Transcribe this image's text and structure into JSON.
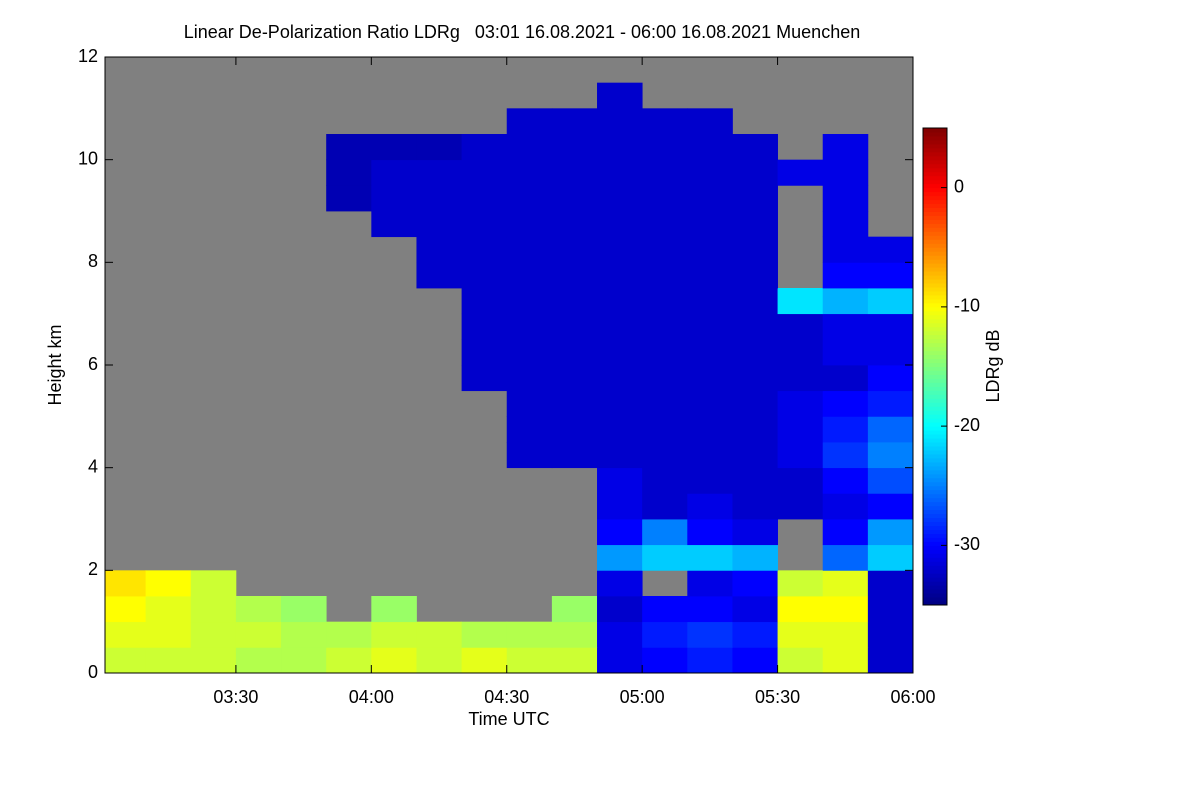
{
  "chart_data": {
    "type": "heatmap",
    "title": "Linear De-Polarization Ratio LDRg   03:01 16.08.2021 - 06:00 16.08.2021 Muenchen",
    "x_label": "Time UTC",
    "y_label": "Height km",
    "colorbar_label": "LDRg dB",
    "colormap": "jet",
    "background_color": "#808080",
    "xlim": [
      "03:01",
      "06:00"
    ],
    "xticks": [
      "03:30",
      "04:00",
      "04:30",
      "05:00",
      "05:30",
      "06:00"
    ],
    "ylim": [
      0,
      12
    ],
    "yticks": [
      0,
      2,
      4,
      6,
      8,
      10,
      12
    ],
    "clim": [
      -35,
      5
    ],
    "cticks": [
      0,
      -10,
      -20,
      -30
    ],
    "x_bins": [
      "03:01",
      "03:10",
      "03:20",
      "03:30",
      "03:40",
      "03:50",
      "04:00",
      "04:10",
      "04:20",
      "04:30",
      "04:40",
      "04:50",
      "05:00",
      "05:10",
      "05:20",
      "05:30",
      "05:40",
      "05:50",
      "06:00"
    ],
    "y_bins": [
      0,
      0.5,
      1,
      1.5,
      2,
      2.5,
      3,
      3.5,
      4,
      4.5,
      5,
      5.5,
      6,
      6.5,
      7,
      7.5,
      8,
      8.5,
      9,
      9.5,
      10,
      10.5,
      11,
      11.5,
      12
    ],
    "values": [
      [
        -12,
        -12,
        -12,
        -13,
        -13,
        -12,
        -11,
        -12,
        -11,
        -12,
        -12,
        -31,
        -30,
        -29,
        -30,
        -12,
        -11,
        -32
      ],
      [
        -11,
        -11,
        -12,
        -12,
        -13,
        -13,
        -12,
        -12,
        -13,
        -13,
        -13,
        -31,
        -29,
        -28,
        -29,
        -11,
        -11,
        -32
      ],
      [
        -10,
        -11,
        -12,
        -13,
        -14,
        null,
        -14,
        null,
        null,
        null,
        -14,
        -32,
        -30,
        -30,
        -31,
        -10,
        -10,
        -32
      ],
      [
        -9,
        -10,
        -12,
        null,
        null,
        null,
        null,
        null,
        null,
        null,
        null,
        -31,
        null,
        -31,
        -30,
        -12,
        -11,
        -32
      ],
      [
        null,
        null,
        null,
        null,
        null,
        null,
        null,
        null,
        null,
        null,
        null,
        -24,
        -22,
        -22,
        -23,
        null,
        -26,
        -22
      ],
      [
        null,
        null,
        null,
        null,
        null,
        null,
        null,
        null,
        null,
        null,
        null,
        -30,
        -25,
        -30,
        -31,
        null,
        -30,
        -24
      ],
      [
        null,
        null,
        null,
        null,
        null,
        null,
        null,
        null,
        null,
        null,
        null,
        -31,
        -32,
        -31,
        -32,
        -32,
        -31,
        -30
      ],
      [
        null,
        null,
        null,
        null,
        null,
        null,
        null,
        null,
        null,
        null,
        null,
        -31,
        -32,
        -32,
        -32,
        -32,
        -30,
        -27
      ],
      [
        null,
        null,
        null,
        null,
        null,
        null,
        null,
        null,
        null,
        -32,
        -32,
        -32,
        -32,
        -32,
        -32,
        -31,
        -28,
        -25
      ],
      [
        null,
        null,
        null,
        null,
        null,
        null,
        null,
        null,
        null,
        -32,
        -32,
        -32,
        -32,
        -32,
        -32,
        -31,
        -29,
        -26
      ],
      [
        null,
        null,
        null,
        null,
        null,
        null,
        null,
        null,
        null,
        -32,
        -32,
        -32,
        -32,
        -32,
        -32,
        -31,
        -30,
        -29
      ],
      [
        null,
        null,
        null,
        null,
        null,
        null,
        null,
        null,
        -32,
        -32,
        -32,
        -32,
        -32,
        -32,
        -32,
        -32,
        -32,
        -30
      ],
      [
        null,
        null,
        null,
        null,
        null,
        null,
        null,
        null,
        -32,
        -32,
        -32,
        -32,
        -32,
        -32,
        -32,
        -32,
        -31,
        -31
      ],
      [
        null,
        null,
        null,
        null,
        null,
        null,
        null,
        null,
        -32,
        -32,
        -32,
        -32,
        -32,
        -32,
        -32,
        -32,
        -31,
        -31
      ],
      [
        null,
        null,
        null,
        null,
        null,
        null,
        null,
        null,
        -32,
        -32,
        -32,
        -32,
        -32,
        -32,
        -32,
        -21,
        -23,
        -22
      ],
      [
        null,
        null,
        null,
        null,
        null,
        null,
        null,
        -32,
        -32,
        -32,
        -32,
        -32,
        -32,
        -32,
        -32,
        null,
        -30,
        -30
      ],
      [
        null,
        null,
        null,
        null,
        null,
        null,
        null,
        -32,
        -32,
        -32,
        -32,
        -32,
        -32,
        -32,
        -32,
        null,
        -31,
        -31
      ],
      [
        null,
        null,
        null,
        null,
        null,
        null,
        -32,
        -32,
        -32,
        -32,
        -32,
        -32,
        -32,
        -32,
        -32,
        null,
        -31,
        null
      ],
      [
        null,
        null,
        null,
        null,
        null,
        -33,
        -32,
        -32,
        -32,
        -32,
        -32,
        -32,
        -32,
        -32,
        -32,
        null,
        -31,
        null
      ],
      [
        null,
        null,
        null,
        null,
        null,
        -33,
        -32,
        -32,
        -32,
        -32,
        -32,
        -32,
        -32,
        -32,
        -32,
        -31,
        -31,
        null
      ],
      [
        null,
        null,
        null,
        null,
        null,
        -33,
        -33,
        -33,
        -32,
        -32,
        -32,
        -32,
        -32,
        -32,
        -32,
        null,
        -31,
        null
      ],
      [
        null,
        null,
        null,
        null,
        null,
        null,
        null,
        null,
        null,
        -32,
        -32,
        -32,
        -32,
        -32,
        null,
        null,
        null,
        null
      ],
      [
        null,
        null,
        null,
        null,
        null,
        null,
        null,
        null,
        null,
        null,
        null,
        -32,
        null,
        null,
        null,
        null,
        null,
        null
      ],
      [
        null,
        null,
        null,
        null,
        null,
        null,
        null,
        null,
        null,
        null,
        null,
        null,
        null,
        null,
        null,
        null,
        null,
        null
      ]
    ]
  }
}
